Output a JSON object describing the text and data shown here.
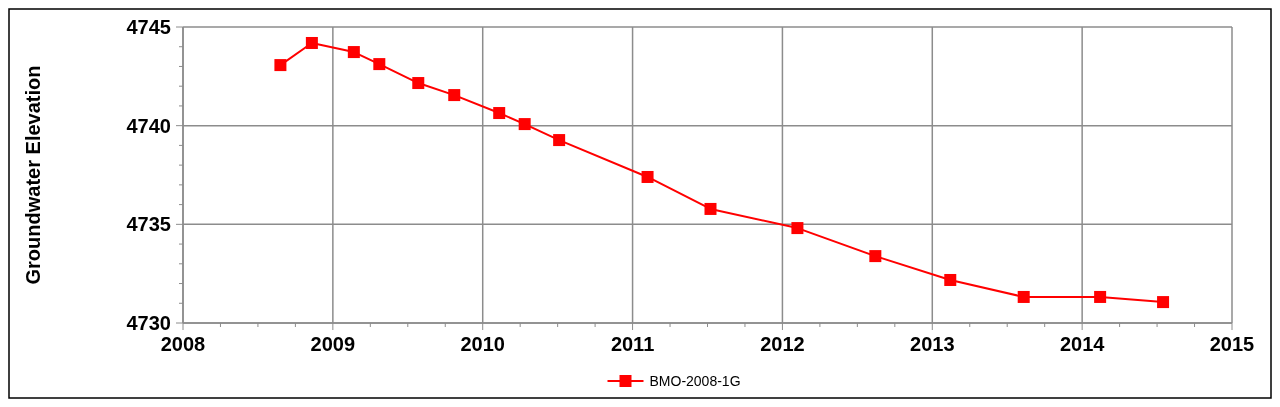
{
  "chart_data": {
    "type": "line",
    "ylabel": "Groundwater Elevation",
    "x": [
      2008.65,
      2008.86,
      2009.14,
      2009.31,
      2009.57,
      2009.81,
      2010.11,
      2010.28,
      2010.51,
      2011.1,
      2011.52,
      2012.1,
      2012.62,
      2013.12,
      2013.61,
      2014.12,
      2014.54
    ],
    "series": [
      {
        "name": "BMO-2008-1G",
        "color": "#ff0000",
        "values": [
          4743.07,
          4744.19,
          4743.73,
          4743.12,
          4742.16,
          4741.55,
          4740.64,
          4740.08,
          4739.27,
          4737.4,
          4735.78,
          4734.81,
          4733.39,
          4732.18,
          4731.32,
          4731.32,
          4731.06
        ]
      }
    ],
    "xlim": [
      2008,
      2015
    ],
    "xticks": [
      2008,
      {
        "value": 2008.25,
        "label": null
      },
      {
        "value": 2008.5,
        "label": null
      },
      {
        "value": 2008.75,
        "label": null
      },
      2009,
      {
        "value": 2009.25,
        "label": null
      },
      {
        "value": 2009.5,
        "label": null
      },
      {
        "value": 2009.75,
        "label": null
      },
      2010,
      {
        "value": 2010.25,
        "label": null
      },
      {
        "value": 2010.5,
        "label": null
      },
      {
        "value": 2010.75,
        "label": null
      },
      2011,
      {
        "value": 2011.25,
        "label": null
      },
      {
        "value": 2011.5,
        "label": null
      },
      {
        "value": 2011.75,
        "label": null
      },
      2012,
      {
        "value": 2012.25,
        "label": null
      },
      {
        "value": 2012.5,
        "label": null
      },
      {
        "value": 2012.75,
        "label": null
      },
      2013,
      {
        "value": 2013.25,
        "label": null
      },
      {
        "value": 2013.5,
        "label": null
      },
      {
        "value": 2013.75,
        "label": null
      },
      2014,
      {
        "value": 2014.25,
        "label": null
      },
      {
        "value": 2014.5,
        "label": null
      },
      {
        "value": 2014.75,
        "label": null
      },
      2015
    ],
    "ylim": [
      4730,
      4745
    ],
    "yticks": [
      4730,
      {
        "value": 4731,
        "label": null
      },
      {
        "value": 4732,
        "label": null
      },
      {
        "value": 4733,
        "label": null
      },
      {
        "value": 4734,
        "label": null
      },
      4735,
      {
        "value": 4736,
        "label": null
      },
      {
        "value": 4737,
        "label": null
      },
      {
        "value": 4738,
        "label": null
      },
      {
        "value": 4739,
        "label": null
      },
      4740,
      {
        "value": 4741,
        "label": null
      },
      {
        "value": 4742,
        "label": null
      },
      {
        "value": 4743,
        "label": null
      },
      {
        "value": 4744,
        "label": null
      },
      4745
    ],
    "grid": true,
    "legend": "bottom",
    "marker": "square",
    "line_style": "solid"
  }
}
